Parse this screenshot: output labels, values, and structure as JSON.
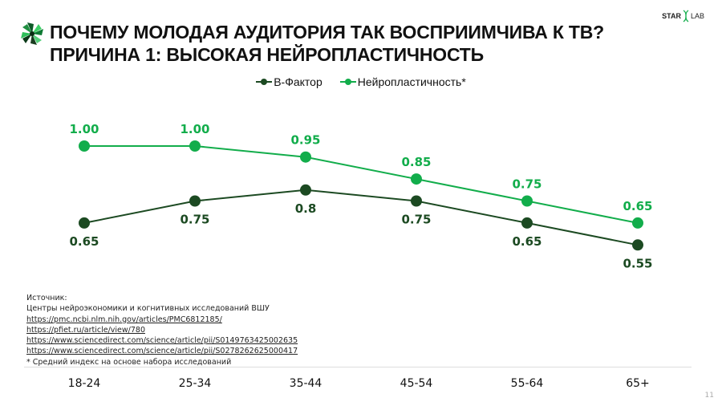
{
  "header": {
    "title_line1": "ПОЧЕМУ МОЛОДАЯ АУДИТОРИЯ ТАК ВОСПРИИМЧИВА К ТВ?",
    "title_line2": "ПРИЧИНА 1: ВЫСОКАЯ НЕЙРОПЛАСТИЧНОСТЬ",
    "brand_left": "STAR",
    "brand_right": "LAB"
  },
  "chart_data": {
    "type": "line",
    "categories": [
      "18-24",
      "25-34",
      "35-44",
      "45-54",
      "55-64",
      "65+"
    ],
    "series": [
      {
        "name": "В-Фактор",
        "color": "#1c4a22",
        "values": [
          0.65,
          0.75,
          0.8,
          0.75,
          0.65,
          0.55
        ],
        "labels": [
          "0.65",
          "0.75",
          "0.8",
          "0.75",
          "0.65",
          "0.55"
        ]
      },
      {
        "name": "Нейропластичность*",
        "color": "#12ad4b",
        "values": [
          1.0,
          1.0,
          0.95,
          0.85,
          0.75,
          0.65
        ],
        "labels": [
          "1.00",
          "1.00",
          "0.95",
          "0.85",
          "0.75",
          "0.65"
        ]
      }
    ],
    "legend": "top-center",
    "grid": false
  },
  "sources": {
    "heading": "Источник:",
    "org": "Центры нейроэкономики и когнитивных исследований ВШУ",
    "links": [
      "https://pmc.ncbi.nlm.nih.gov/articles/PMC6812185/",
      "https://pfiet.ru/article/view/780",
      "https://www.sciencedirect.com/science/article/pii/S0149763425002635",
      "https://www.sciencedirect.com/science/article/pii/S0278262625000417"
    ],
    "footnote": "* Средний индекс на основе набора исследований"
  },
  "page_number": "11"
}
